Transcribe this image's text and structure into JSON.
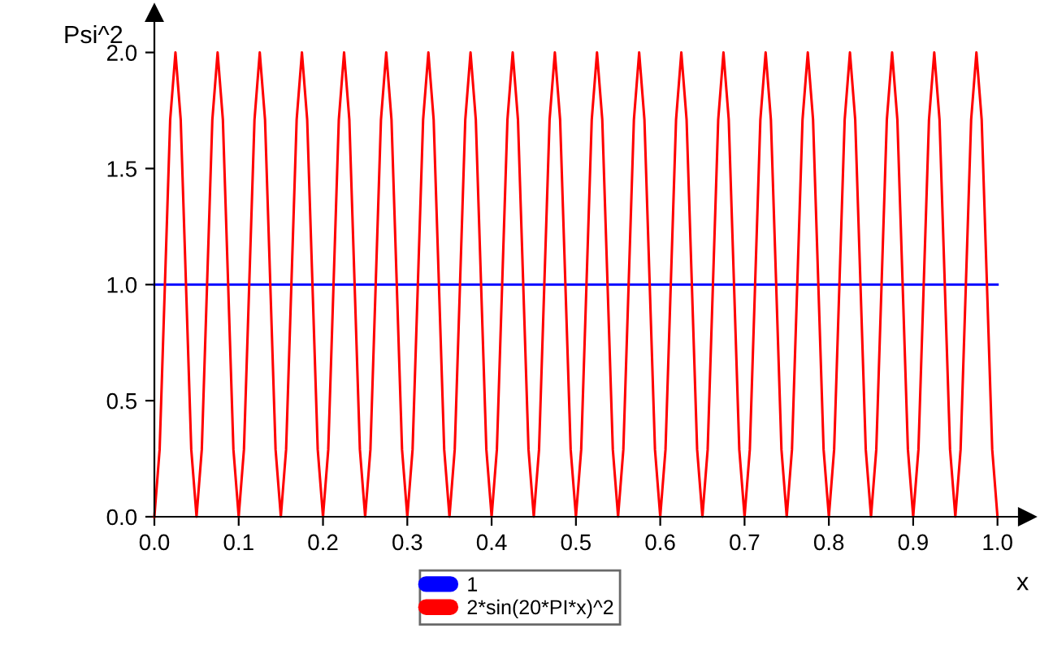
{
  "chart_data": {
    "type": "line",
    "xlabel": "x",
    "ylabel": "Psi^2",
    "xlim": [
      0,
      1.035
    ],
    "ylim": [
      0,
      2.17
    ],
    "xticks": [
      {
        "value": 0,
        "label": "0.0"
      },
      0.1,
      0.2,
      0.3,
      0.4,
      0.5,
      0.6,
      0.7,
      0.8,
      0.9,
      {
        "value": 1,
        "label": "1.0"
      }
    ],
    "yticks": [
      {
        "value": 0,
        "label": "0.0"
      },
      0.5,
      {
        "value": 1,
        "label": "1.0"
      },
      1.5,
      {
        "value": 2,
        "label": "2.0"
      }
    ],
    "grid": false,
    "legend": "bottom",
    "marker": "none",
    "line_style": "solid",
    "series": [
      {
        "name": "1",
        "color": "#0000ff",
        "x": [
          0,
          1
        ],
        "values": [
          1,
          1
        ]
      },
      {
        "name": "2*sin(20*PI*x)^2",
        "color": "#ff0000",
        "x": [
          0,
          0.00625,
          0.0125,
          0.01875,
          0.025,
          0.03125,
          0.0375,
          0.04375,
          0.05,
          0.05625,
          0.0625,
          0.06875,
          0.075,
          0.08125,
          0.0875,
          0.09375,
          0.1,
          0.10625,
          0.1125,
          0.11875,
          0.125,
          0.13125,
          0.1375,
          0.14375,
          0.15,
          0.15625,
          0.1625,
          0.16875,
          0.175,
          0.18125,
          0.1875,
          0.19375,
          0.2,
          0.20625,
          0.2125,
          0.21875,
          0.225,
          0.23125,
          0.2375,
          0.24375,
          0.25,
          0.25625,
          0.2625,
          0.26875,
          0.275,
          0.28125,
          0.2875,
          0.29375,
          0.3,
          0.30625,
          0.3125,
          0.31875,
          0.325,
          0.33125,
          0.3375,
          0.34375,
          0.35,
          0.35625,
          0.3625,
          0.36875,
          0.375,
          0.38125,
          0.3875,
          0.39375,
          0.4,
          0.40625,
          0.4125,
          0.41875,
          0.425,
          0.43125,
          0.4375,
          0.44375,
          0.45,
          0.45625,
          0.4625,
          0.46875,
          0.475,
          0.48125,
          0.4875,
          0.49375,
          0.5,
          0.50625,
          0.5125,
          0.51875,
          0.525,
          0.53125,
          0.5375,
          0.54375,
          0.55,
          0.55625,
          0.5625,
          0.56875,
          0.575,
          0.58125,
          0.5875,
          0.59375,
          0.6,
          0.60625,
          0.6125,
          0.61875,
          0.625,
          0.63125,
          0.6375,
          0.64375,
          0.65,
          0.65625,
          0.6625,
          0.66875,
          0.675,
          0.68125,
          0.6875,
          0.69375,
          0.7,
          0.70625,
          0.7125,
          0.71875,
          0.725,
          0.73125,
          0.7375,
          0.74375,
          0.75,
          0.75625,
          0.7625,
          0.76875,
          0.775,
          0.78125,
          0.7875,
          0.79375,
          0.8,
          0.80625,
          0.8125,
          0.81875,
          0.825,
          0.83125,
          0.8375,
          0.84375,
          0.85,
          0.85625,
          0.8625,
          0.86875,
          0.875,
          0.88125,
          0.8875,
          0.89375,
          0.9,
          0.90625,
          0.9125,
          0.91875,
          0.925,
          0.93125,
          0.9375,
          0.94375,
          0.95,
          0.95625,
          0.9625,
          0.96875,
          0.975,
          0.98125,
          0.9875,
          0.99375,
          1
        ],
        "values": [
          0,
          0.29,
          1,
          1.71,
          2,
          1.71,
          1,
          0.29,
          0,
          0.29,
          1,
          1.71,
          2,
          1.71,
          1,
          0.29,
          0,
          0.29,
          1,
          1.71,
          2,
          1.71,
          1,
          0.29,
          0,
          0.29,
          1,
          1.71,
          2,
          1.71,
          1,
          0.29,
          0,
          0.29,
          1,
          1.71,
          2,
          1.71,
          1,
          0.29,
          0,
          0.29,
          1,
          1.71,
          2,
          1.71,
          1,
          0.29,
          0,
          0.29,
          1,
          1.71,
          2,
          1.71,
          1,
          0.29,
          0,
          0.29,
          1,
          1.71,
          2,
          1.71,
          1,
          0.29,
          0,
          0.29,
          1,
          1.71,
          2,
          1.71,
          1,
          0.29,
          0,
          0.29,
          1,
          1.71,
          2,
          1.71,
          1,
          0.29,
          0,
          0.29,
          1,
          1.71,
          2,
          1.71,
          1,
          0.29,
          0,
          0.29,
          1,
          1.71,
          2,
          1.71,
          1,
          0.29,
          0,
          0.29,
          1,
          1.71,
          2,
          1.71,
          1,
          0.29,
          0,
          0.29,
          1,
          1.71,
          2,
          1.71,
          1,
          0.29,
          0,
          0.29,
          1,
          1.71,
          2,
          1.71,
          1,
          0.29,
          0,
          0.29,
          1,
          1.71,
          2,
          1.71,
          1,
          0.29,
          0,
          0.29,
          1,
          1.71,
          2,
          1.71,
          1,
          0.29,
          0,
          0.29,
          1,
          1.71,
          2,
          1.71,
          1,
          0.29,
          0,
          0.29,
          1,
          1.71,
          2,
          1.71,
          1,
          0.29,
          0,
          0.29,
          1,
          1.71,
          2,
          1.71,
          1,
          0.29,
          0
        ]
      }
    ]
  }
}
